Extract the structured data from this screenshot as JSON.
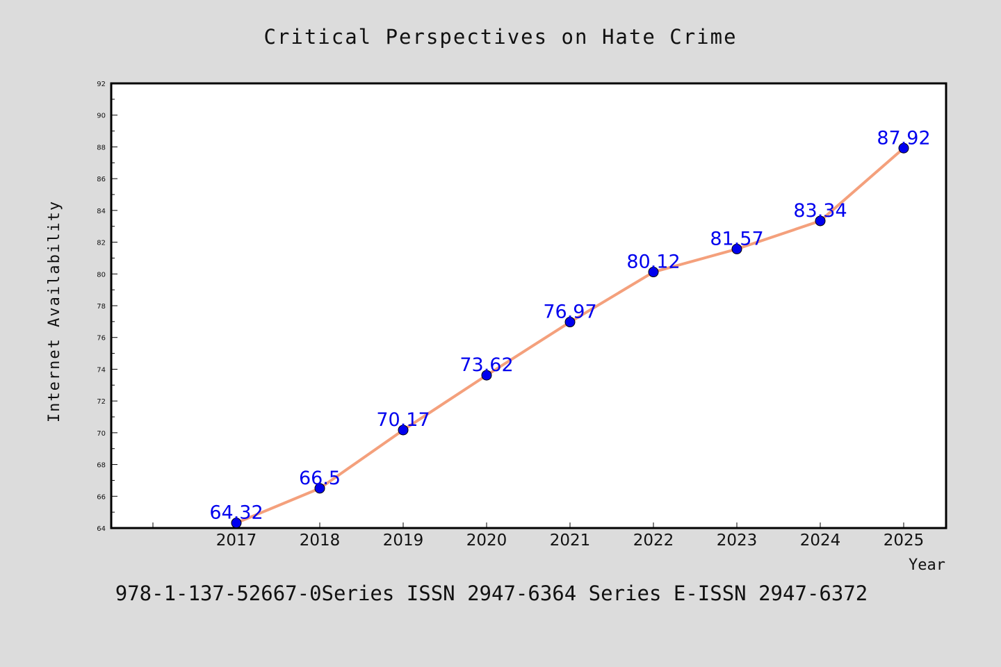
{
  "chart_data": {
    "type": "line",
    "title": "Critical Perspectives on Hate Crime",
    "xlabel": "Year",
    "ylabel": "Internet Availability",
    "categories": [
      "2017",
      "2018",
      "2019",
      "2020",
      "2021",
      "2022",
      "2023",
      "2024",
      "2025"
    ],
    "series": [
      {
        "values": [
          64.32,
          66.5,
          70.17,
          73.62,
          76.97,
          80.12,
          81.57,
          83.34,
          87.92
        ],
        "data_labels": [
          "64.32",
          "66.5",
          "70.17",
          "73.62",
          "76.97",
          "80.12",
          "81.57",
          "83.34",
          "87.92"
        ]
      }
    ],
    "ylim": [
      64,
      92
    ],
    "y_ticks": [
      "64",
      "66",
      "68",
      "70",
      "72",
      "74",
      "76",
      "78",
      "80",
      "82",
      "84",
      "86",
      "88",
      "90",
      "92"
    ],
    "grid": false,
    "legend": "none",
    "colors": {
      "line": "#f4a07c",
      "marker": "#0000ee",
      "label": "#0000ee",
      "background": "#dcdcdc",
      "plot_background": "#ffffff"
    }
  },
  "footer": "978-1-137-52667-0Series ISSN 2947-6364 Series E-ISSN 2947-6372"
}
